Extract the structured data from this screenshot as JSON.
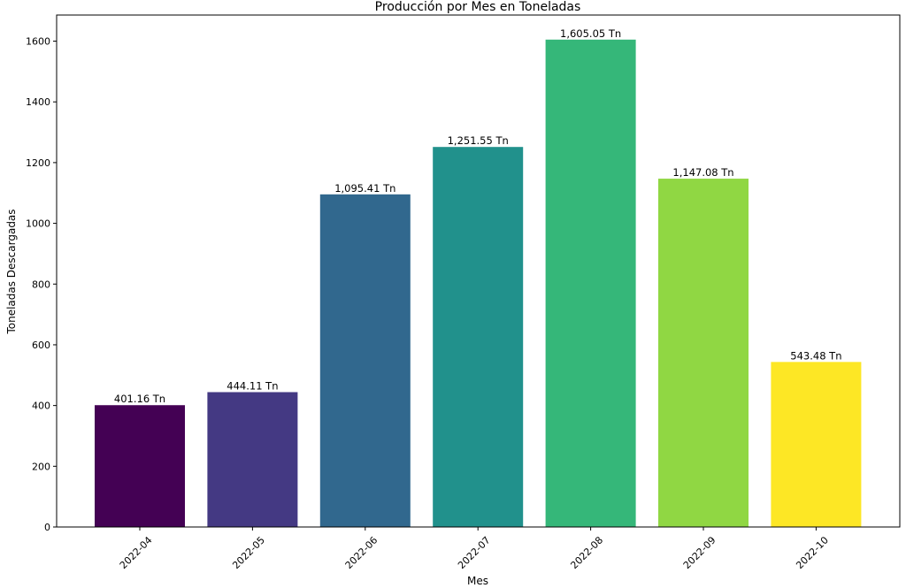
{
  "chart_data": {
    "type": "bar",
    "title": "Producción por Mes en Toneladas",
    "xlabel": "Mes",
    "ylabel": "Toneladas Descargadas",
    "categories": [
      "2022-04",
      "2022-05",
      "2022-06",
      "2022-07",
      "2022-08",
      "2022-09",
      "2022-10"
    ],
    "values": [
      401.16,
      444.11,
      1095.41,
      1251.55,
      1605.05,
      1147.08,
      543.48
    ],
    "value_labels": [
      "401.16 Tn",
      "444.11 Tn",
      "1,095.41 Tn",
      "1,251.55 Tn",
      "1,605.05 Tn",
      "1,147.08 Tn",
      "543.48 Tn"
    ],
    "colors": [
      "#440154",
      "#443983",
      "#31688e",
      "#21918c",
      "#35b779",
      "#90d743",
      "#fde725"
    ],
    "ylim": [
      0,
      1686
    ],
    "yticks": [
      0,
      200,
      400,
      600,
      800,
      1000,
      1200,
      1400,
      1600
    ],
    "grid": false,
    "legend": "none"
  }
}
